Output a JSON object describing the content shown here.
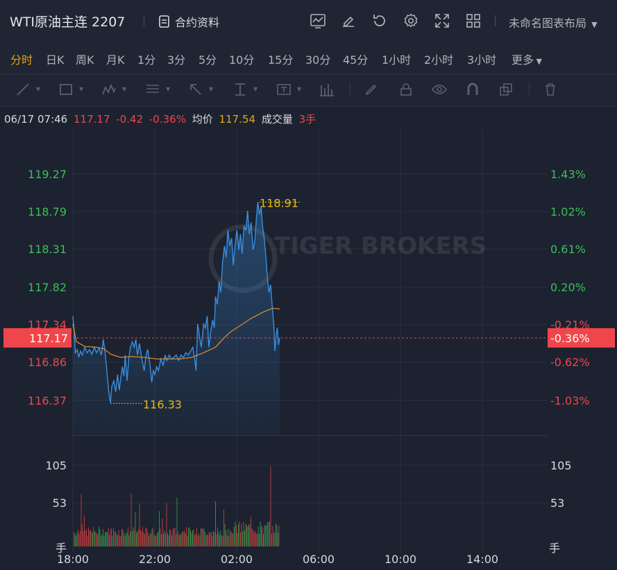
{
  "header": {
    "title": "WTI原油主连 2207",
    "info_label": "合约资料",
    "layout_label": "未命名图表布局"
  },
  "periods": [
    "分时",
    "日K",
    "周K",
    "月K",
    "1分",
    "3分",
    "5分",
    "10分",
    "15分",
    "30分",
    "45分",
    "1小时",
    "2小时",
    "3小时",
    "更多"
  ],
  "active_period": "分时",
  "toolbar_icons": [
    "trend-line-icon",
    "rectangle-icon",
    "pattern-icon",
    "fib-icon",
    "arrow-icon",
    "measure-icon",
    "text-icon",
    "indicator-icon",
    "pen-icon",
    "lock-icon",
    "eye-icon",
    "magnet-icon",
    "layers-icon",
    "trash-icon"
  ],
  "hud": {
    "time": "06/17 07:46",
    "price": "117.17",
    "change": "-0.42",
    "pct": "-0.36%",
    "avg_label": "均价",
    "avg": "117.54",
    "vol_label": "成交量",
    "vol": "3手"
  },
  "colors": {
    "up": "#3dbf5a",
    "down": "#f0464b",
    "price_line": "#3a8fe0",
    "avg_line": "#d98a2f",
    "annot": "#e8b914",
    "watermark": "TIGER BROKERS"
  },
  "chart_data": {
    "type": "line",
    "x_ticks": [
      "18:00",
      "22:00",
      "02:00",
      "06:00",
      "10:00",
      "14:00"
    ],
    "price_ticks": [
      {
        "label": "119.27",
        "pct": "1.43%",
        "color": "up",
        "v": 119.27
      },
      {
        "label": "118.79",
        "pct": "1.02%",
        "color": "up",
        "v": 118.79
      },
      {
        "label": "118.31",
        "pct": "0.61%",
        "color": "up",
        "v": 118.31
      },
      {
        "label": "117.82",
        "pct": "0.20%",
        "color": "up",
        "v": 117.82
      },
      {
        "label": "117.34",
        "pct": "-0.21%",
        "color": "down",
        "v": 117.34
      },
      {
        "label": "116.86",
        "pct": "-0.62%",
        "color": "down",
        "v": 116.86
      },
      {
        "label": "116.37",
        "pct": "-1.03%",
        "color": "down",
        "v": 116.37
      }
    ],
    "current": {
      "price": "117.17",
      "pct": "-0.36%",
      "v": 117.17
    },
    "high": {
      "label": "118.91",
      "v": 118.91,
      "x": "05:47"
    },
    "low": {
      "label": "116.33",
      "v": 116.33,
      "x": "19:47"
    },
    "volume_ticks": [
      {
        "label": "105",
        "v": 105
      },
      {
        "label": "53",
        "v": 53
      }
    ],
    "volume_unit": "手",
    "price_series": [
      [
        0,
        117.45
      ],
      [
        0.05,
        117.28
      ],
      [
        0.1,
        116.98
      ],
      [
        0.18,
        117.02
      ],
      [
        0.25,
        116.92
      ],
      [
        0.32,
        117.0
      ],
      [
        0.4,
        116.95
      ],
      [
        0.5,
        117.05
      ],
      [
        0.6,
        116.98
      ],
      [
        0.7,
        117.02
      ],
      [
        0.8,
        116.96
      ],
      [
        0.9,
        117.05
      ],
      [
        1.0,
        116.98
      ],
      [
        1.1,
        117.04
      ],
      [
        1.2,
        116.95
      ],
      [
        1.28,
        117.15
      ],
      [
        1.35,
        117.0
      ],
      [
        1.45,
        116.68
      ],
      [
        1.52,
        116.45
      ],
      [
        1.58,
        116.34
      ],
      [
        1.64,
        116.55
      ],
      [
        1.72,
        116.62
      ],
      [
        1.8,
        116.48
      ],
      [
        1.88,
        116.7
      ],
      [
        1.95,
        116.5
      ],
      [
        2.0,
        116.62
      ],
      [
        2.08,
        116.8
      ],
      [
        2.15,
        116.68
      ],
      [
        2.2,
        116.95
      ],
      [
        2.28,
        116.62
      ],
      [
        2.35,
        116.9
      ],
      [
        2.42,
        117.05
      ],
      [
        2.5,
        117.12
      ],
      [
        2.58,
        117.05
      ],
      [
        2.65,
        117.15
      ],
      [
        2.72,
        116.95
      ],
      [
        2.8,
        117.1
      ],
      [
        2.9,
        116.9
      ],
      [
        3.0,
        116.75
      ],
      [
        3.08,
        116.95
      ],
      [
        3.15,
        117.02
      ],
      [
        3.25,
        116.82
      ],
      [
        3.32,
        116.6
      ],
      [
        3.38,
        116.75
      ],
      [
        3.45,
        116.7
      ],
      [
        3.52,
        116.8
      ],
      [
        3.6,
        116.75
      ],
      [
        3.7,
        116.9
      ],
      [
        3.8,
        116.82
      ],
      [
        3.88,
        116.95
      ],
      [
        3.95,
        116.88
      ],
      [
        4.05,
        116.95
      ],
      [
        4.15,
        116.9
      ],
      [
        4.25,
        116.92
      ],
      [
        4.35,
        116.95
      ],
      [
        4.45,
        116.88
      ],
      [
        4.55,
        116.95
      ],
      [
        4.65,
        116.92
      ],
      [
        4.75,
        116.98
      ],
      [
        4.85,
        116.95
      ],
      [
        4.95,
        117.0
      ],
      [
        5.05,
        117.05
      ],
      [
        5.12,
        116.9
      ],
      [
        5.18,
        116.75
      ],
      [
        5.25,
        117.35
      ],
      [
        5.32,
        117.2
      ],
      [
        5.4,
        117.05
      ],
      [
        5.5,
        117.35
      ],
      [
        5.58,
        117.3
      ],
      [
        5.65,
        117.45
      ],
      [
        5.72,
        117.05
      ],
      [
        5.8,
        117.25
      ],
      [
        5.88,
        117.4
      ],
      [
        5.95,
        117.3
      ],
      [
        6.0,
        117.7
      ],
      [
        6.08,
        117.6
      ],
      [
        6.15,
        117.9
      ],
      [
        6.22,
        117.75
      ],
      [
        6.3,
        118.15
      ],
      [
        6.38,
        118.35
      ],
      [
        6.45,
        118.2
      ],
      [
        6.52,
        118.55
      ],
      [
        6.6,
        118.35
      ],
      [
        6.68,
        118.45
      ],
      [
        6.75,
        118.1
      ],
      [
        6.82,
        118.35
      ],
      [
        6.9,
        118.55
      ],
      [
        6.98,
        118.3
      ],
      [
        7.05,
        118.5
      ],
      [
        7.12,
        118.25
      ],
      [
        7.2,
        118.6
      ],
      [
        7.28,
        118.55
      ],
      [
        7.35,
        118.8
      ],
      [
        7.42,
        118.5
      ],
      [
        7.5,
        118.65
      ],
      [
        7.58,
        118.3
      ],
      [
        7.65,
        118.4
      ],
      [
        7.72,
        118.7
      ],
      [
        7.78,
        118.91
      ],
      [
        7.85,
        118.75
      ],
      [
        7.92,
        118.85
      ],
      [
        7.98,
        118.6
      ],
      [
        8.05,
        118.45
      ],
      [
        8.12,
        118.2
      ],
      [
        8.18,
        117.95
      ],
      [
        8.25,
        117.75
      ],
      [
        8.32,
        117.85
      ],
      [
        8.38,
        117.6
      ],
      [
        8.45,
        117.35
      ],
      [
        8.5,
        117.0
      ],
      [
        8.55,
        117.2
      ],
      [
        8.6,
        117.3
      ],
      [
        8.65,
        117.08
      ],
      [
        8.7,
        117.17
      ]
    ],
    "avg_series": [
      [
        0,
        117.35
      ],
      [
        0.15,
        117.12
      ],
      [
        0.5,
        117.06
      ],
      [
        1.0,
        117.05
      ],
      [
        1.3,
        117.03
      ],
      [
        1.6,
        116.96
      ],
      [
        2.0,
        116.92
      ],
      [
        2.5,
        116.93
      ],
      [
        3.0,
        116.92
      ],
      [
        3.5,
        116.9
      ],
      [
        4.0,
        116.9
      ],
      [
        4.5,
        116.9
      ],
      [
        5.0,
        116.92
      ],
      [
        5.5,
        116.98
      ],
      [
        6.0,
        117.05
      ],
      [
        6.3,
        117.15
      ],
      [
        6.6,
        117.24
      ],
      [
        7.0,
        117.32
      ],
      [
        7.5,
        117.42
      ],
      [
        8.0,
        117.5
      ],
      [
        8.4,
        117.55
      ],
      [
        8.7,
        117.54
      ]
    ],
    "xlim_hours": [
      0,
      20
    ],
    "ylim": [
      116.0,
      119.6
    ]
  }
}
